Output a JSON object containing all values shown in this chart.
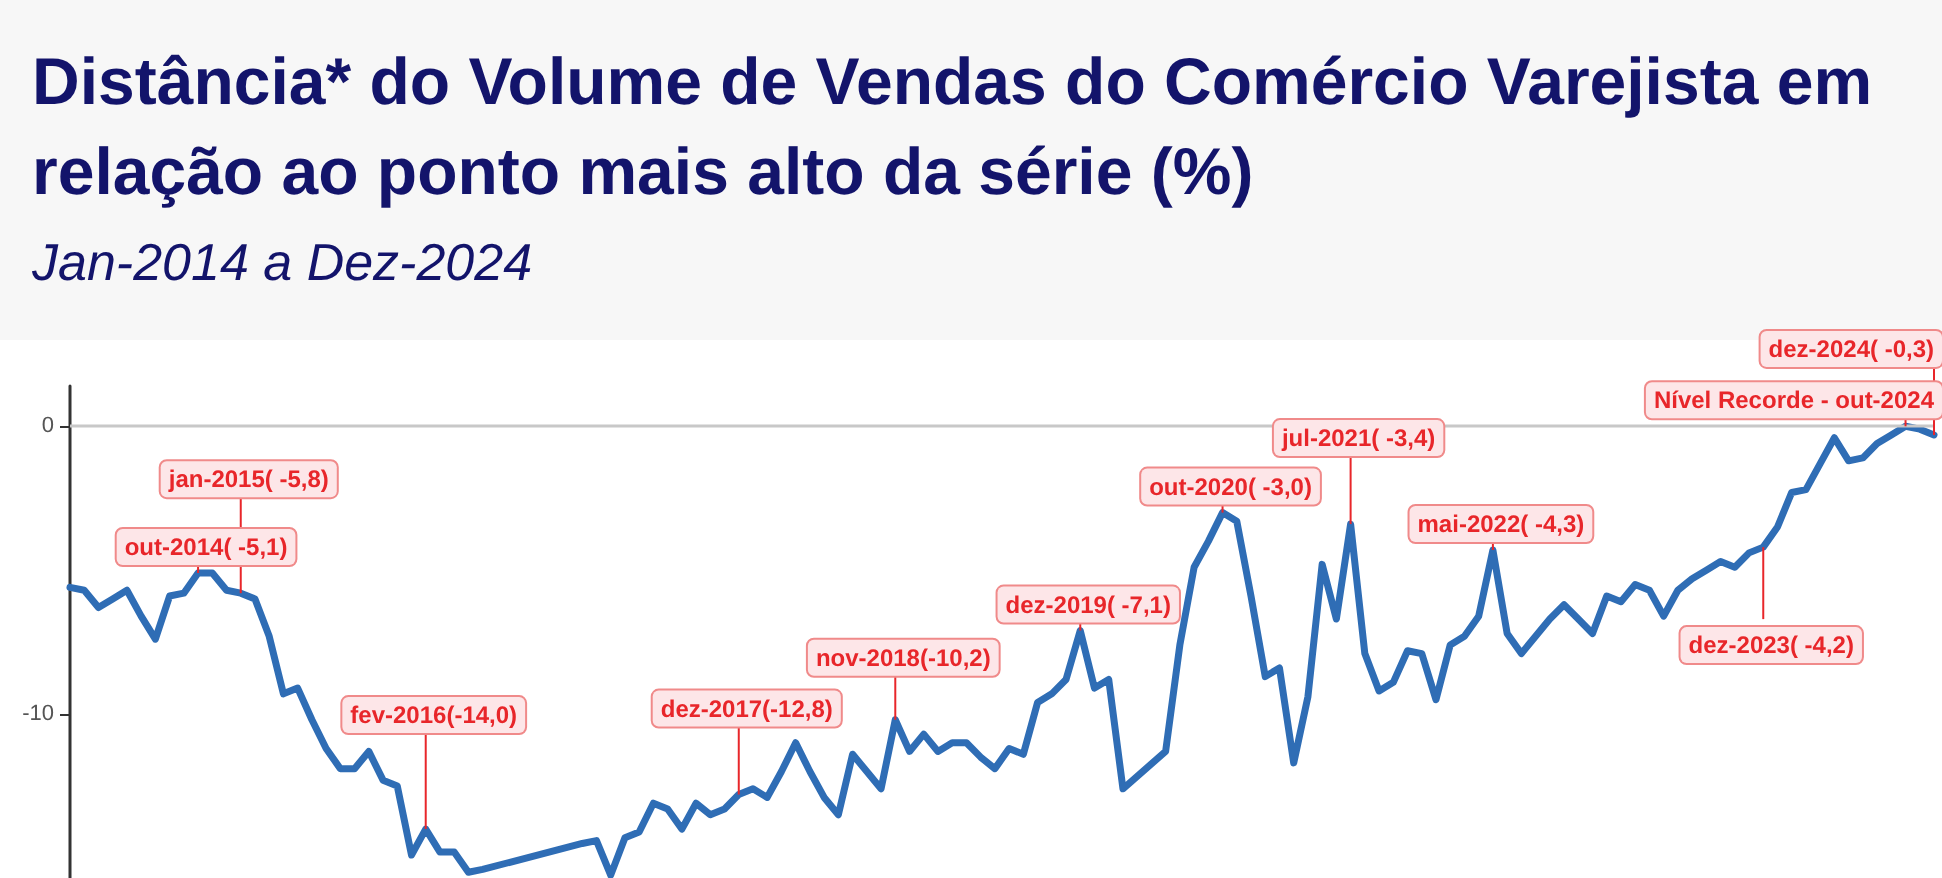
{
  "chart_data": {
    "type": "line",
    "title": "Distância* do Volume de Vendas do Comércio Varejista em relação ao ponto mais alto da série (%)",
    "subtitle": "Jan-2014 a Dez-2024",
    "categories": [
      null,
      null,
      null,
      null,
      null,
      null,
      null,
      null,
      null,
      null,
      null,
      null,
      null,
      null,
      null,
      null,
      null,
      null,
      null,
      null,
      null,
      null,
      null,
      null,
      null,
      null,
      null,
      null,
      null,
      null,
      null,
      null,
      null,
      null,
      null,
      null,
      null,
      null,
      null,
      null,
      null,
      null,
      null,
      null,
      null,
      null,
      null,
      null,
      null,
      null,
      null,
      null,
      null,
      null,
      null,
      null,
      null,
      null,
      null,
      null,
      null,
      null,
      null,
      null,
      null,
      null,
      null,
      null,
      null,
      null,
      null,
      null,
      null,
      null,
      null,
      null,
      null,
      null,
      null,
      null,
      null,
      null,
      null,
      null,
      null,
      null,
      null,
      null,
      null,
      null,
      null,
      null,
      null,
      null,
      null,
      null,
      null,
      null,
      null,
      null,
      null,
      null,
      null,
      null,
      null,
      null,
      null,
      null,
      null,
      null,
      null,
      null,
      null,
      null,
      null,
      null,
      null,
      null,
      null,
      null,
      null,
      null,
      null,
      null,
      null,
      null,
      null,
      null,
      null,
      null,
      null,
      null
    ],
    "series": [
      {
        "color": "#2f6db5",
        "values": [
          -5.6,
          -5.7,
          -6.3,
          -6.0,
          -5.7,
          -6.6,
          -7.4,
          -5.9,
          -5.8,
          -5.1,
          -5.1,
          -5.7,
          -5.8,
          -6.0,
          -7.3,
          -9.3,
          -9.1,
          -10.2,
          -11.2,
          -11.9,
          -11.9,
          -11.3,
          -12.3,
          -12.5,
          -14.9,
          -14.0,
          -14.8,
          -14.8,
          -15.5,
          -15.4,
          null,
          null,
          null,
          null,
          null,
          null,
          -14.5,
          -14.4,
          -15.6,
          -14.3,
          -14.1,
          -13.1,
          -13.3,
          -14.0,
          -13.1,
          -13.5,
          -13.3,
          -12.8,
          -12.6,
          -12.9,
          -12.0,
          -11.0,
          -12.0,
          -12.9,
          -13.5,
          -11.4,
          -12.0,
          -12.6,
          -10.2,
          -11.3,
          -10.7,
          -11.3,
          -11.0,
          -11.0,
          -11.5,
          -11.9,
          -11.2,
          -11.4,
          -9.6,
          -9.3,
          -8.8,
          -7.1,
          -9.1,
          -8.8,
          -12.6,
          null,
          null,
          -11.3,
          -7.6,
          -4.9,
          -4.0,
          -3.0,
          -3.3,
          -5.9,
          -8.7,
          -8.4,
          -11.7,
          -9.4,
          -4.8,
          -6.7,
          -3.4,
          -7.9,
          -9.2,
          -8.9,
          -7.8,
          -7.9,
          -9.5,
          -7.6,
          -7.3,
          -6.6,
          -4.3,
          -7.2,
          -7.9,
          -7.3,
          -6.7,
          -6.2,
          -6.7,
          -7.2,
          -5.9,
          -6.1,
          -5.5,
          -5.7,
          -6.6,
          -5.7,
          -5.3,
          -5.0,
          -4.7,
          -4.9,
          -4.4,
          -4.2,
          -3.5,
          -2.3,
          -2.2,
          -1.3,
          -0.4,
          -1.2,
          -1.1,
          -0.6,
          -0.3,
          0,
          -0.1,
          -0.3
        ]
      }
    ],
    "ylim": [
      -15.7,
      1.4
    ],
    "yticks": [
      -10,
      0
    ],
    "tick_labels": "y",
    "grid": false,
    "line_style": "solid",
    "ref_lines": [
      {
        "axis": "y",
        "value": 0,
        "color": "#c8c8c8"
      }
    ],
    "annotations": [
      {
        "text": "out-2014( -5,1)",
        "y": -5.1
      },
      {
        "text": "jan-2015( -5,8)",
        "y": -5.8
      },
      {
        "text": "fev-2016(-14,0)",
        "y": -14.0
      },
      {
        "text": "dez-2017(-12,8)",
        "y": -12.8
      },
      {
        "text": "nov-2018(-10,2)",
        "y": -10.2
      },
      {
        "text": "dez-2019( -7,1)",
        "y": -7.1
      },
      {
        "text": "out-2020( -3,0)",
        "y": -3.0
      },
      {
        "text": "jul-2021( -3,4)",
        "y": -3.4
      },
      {
        "text": "mai-2022( -4,3)",
        "y": -4.3
      },
      {
        "text": "dez-2023( -4,2)",
        "y": -4.2
      },
      {
        "text": "Nível Recorde - out-2024",
        "y": 0
      },
      {
        "text": "dez-2024( -0,3)",
        "y": -0.3
      }
    ]
  }
}
